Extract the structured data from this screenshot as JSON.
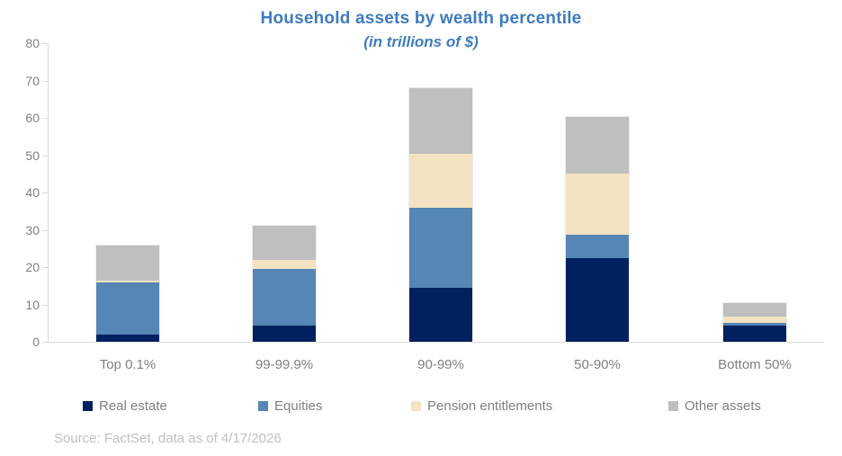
{
  "chart_data": {
    "type": "bar",
    "stacked": true,
    "title": "Household assets by wealth percentile",
    "subtitle": "(in trillions of $)",
    "title_color": "#3E7CBE",
    "categories": [
      "Top 0.1%",
      "99-99.9%",
      "90-99%",
      "50-90%",
      "Bottom 50%"
    ],
    "series": [
      {
        "name": "Real estate",
        "color": "#002060",
        "values": [
          2.0,
          4.4,
          14.5,
          22.3,
          4.3
        ]
      },
      {
        "name": "Equities",
        "color": "#5586B5",
        "values": [
          14.0,
          15.0,
          21.5,
          6.4,
          0.8
        ]
      },
      {
        "name": "Pension entitlements",
        "color": "#F3E3C2",
        "values": [
          0.5,
          2.6,
          14.4,
          16.4,
          1.6
        ]
      },
      {
        "name": "Other assets",
        "color": "#BFBFBF",
        "values": [
          9.2,
          9.2,
          17.6,
          15.1,
          3.6
        ]
      }
    ],
    "totals": [
      25.7,
      31.2,
      68.0,
      60.2,
      10.3
    ],
    "ylim": [
      0,
      80
    ],
    "yticks": [
      0,
      10,
      20,
      30,
      40,
      50,
      60,
      70,
      80
    ],
    "grid": false,
    "legend_position": "bottom",
    "axis_color": "#D9D9D9",
    "label_color": "#7F7F7F"
  },
  "footer": {
    "source": "Source: FactSet, data as of 4/17/2026"
  }
}
